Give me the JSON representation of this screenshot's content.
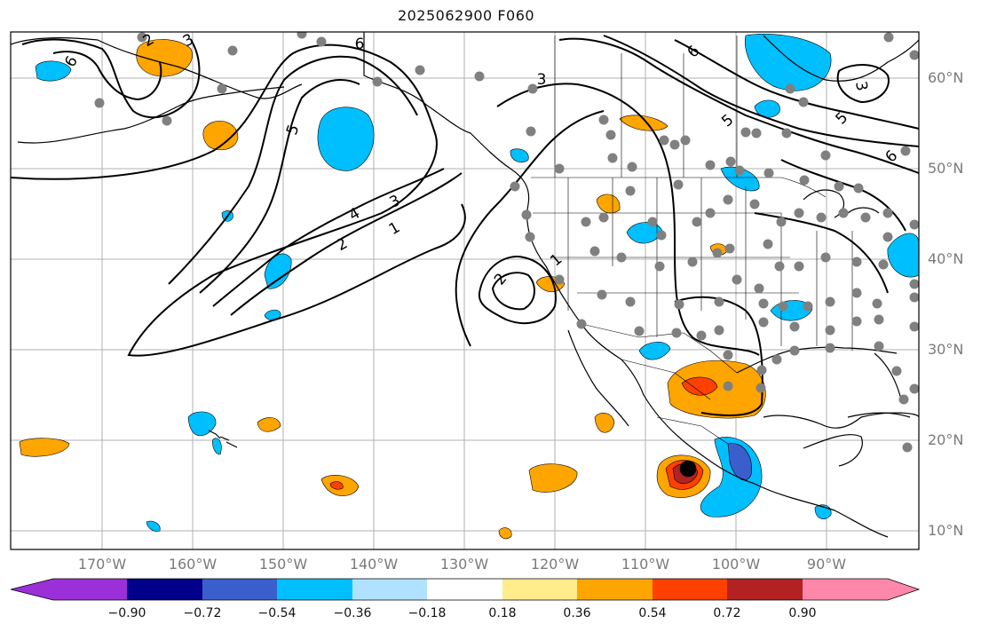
{
  "title": "2025062900 F060",
  "lat_labels": [
    "60°N",
    "50°N",
    "40°N",
    "30°N",
    "20°N",
    "10°N"
  ],
  "lon_labels": [
    "170°W",
    "160°W",
    "150°W",
    "140°W",
    "130°W",
    "120°W",
    "110°W",
    "100°W",
    "90°W"
  ],
  "colorbar": {
    "ticks": [
      "−0.90",
      "−0.72",
      "−0.54",
      "−0.36",
      "−0.18",
      "0.18",
      "0.36",
      "0.54",
      "0.72",
      "0.90"
    ],
    "colors": [
      "#9b30d9",
      "#00008b",
      "#3a5fcd",
      "#00bfff",
      "#b0e2ff",
      "#ffffff",
      "#ffec8b",
      "#ffa500",
      "#ff4000",
      "#b22222",
      "#ff88aa"
    ]
  },
  "contour_labels": [
    "6",
    "6",
    "5",
    "3",
    "4",
    "2",
    "1",
    "3",
    "1",
    "2",
    "6",
    "5",
    "3",
    "5",
    "6",
    "3",
    "2"
  ],
  "colors": {
    "land_outline": "#000000",
    "grid": "#b0b0b0",
    "station": "#808080",
    "label": "#7a7a7a"
  }
}
